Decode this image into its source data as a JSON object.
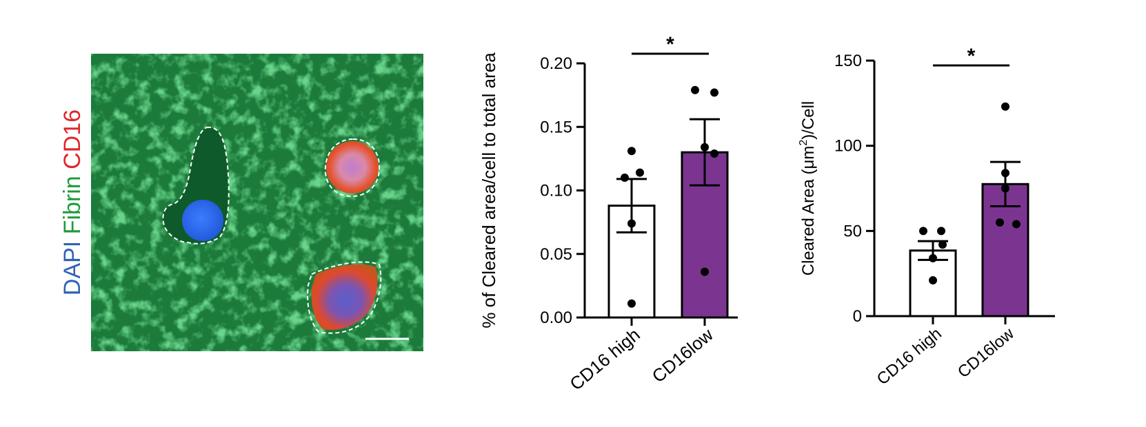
{
  "micrograph": {
    "channel_labels": [
      {
        "text": "DAPI",
        "color": "#2f63b5"
      },
      {
        "text": "Fibrin",
        "color": "#1f9a3c"
      },
      {
        "text": "CD16",
        "color": "#e0262b"
      }
    ],
    "background_color": "#1c7a3a"
  },
  "chart_data": [
    {
      "type": "bar",
      "categories": [
        "CD16 high",
        "CD16low"
      ],
      "values": [
        0.088,
        0.13
      ],
      "errors": [
        0.021,
        0.026
      ],
      "points": [
        [
          0.131,
          0.114,
          0.11,
          0.074,
          0.011
        ],
        [
          0.179,
          0.177,
          0.134,
          0.129,
          0.036
        ]
      ],
      "bar_colors": [
        "#ffffff",
        "#7b3590"
      ],
      "ylabel": "% of Cleared area/cell to total area",
      "ylim": [
        0,
        0.2
      ],
      "yticks": [
        "0.00",
        "0.05",
        "0.10",
        "0.15",
        "0.20"
      ],
      "ytick_values": [
        0,
        0.05,
        0.1,
        0.15,
        0.2
      ],
      "significance": "*"
    },
    {
      "type": "bar",
      "categories": [
        "CD16 high",
        "CD16low"
      ],
      "values": [
        38.5,
        77.5
      ],
      "errors": [
        5.5,
        13
      ],
      "points": [
        [
          50,
          50,
          42,
          34,
          21
        ],
        [
          123,
          84,
          75,
          55,
          54
        ]
      ],
      "bar_colors": [
        "#ffffff",
        "#7b3590"
      ],
      "ylabel_pre": "Cleared Area (μm",
      "ylabel_sup": "2",
      "ylabel_post": ")/Cell",
      "ylim": [
        0,
        150
      ],
      "yticks": [
        "0",
        "50",
        "100",
        "150"
      ],
      "ytick_values": [
        0,
        50,
        100,
        150
      ],
      "significance": "*"
    }
  ]
}
